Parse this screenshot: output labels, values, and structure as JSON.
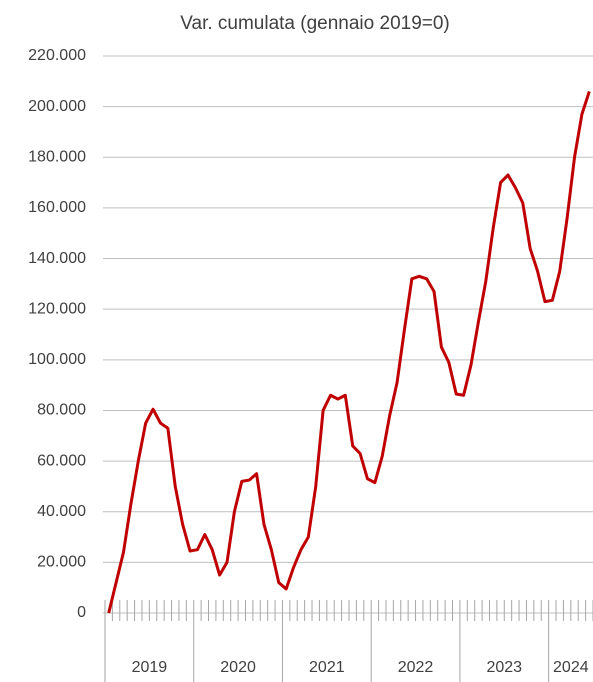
{
  "chart_data": {
    "type": "line",
    "title": "Var. cumulata (gennaio 2019=0)",
    "categories": [
      null,
      null,
      null,
      null,
      null,
      null,
      null,
      null,
      null,
      null,
      null,
      null,
      null,
      null,
      null,
      null,
      null,
      null,
      null,
      null,
      null,
      null,
      null,
      null,
      null,
      null,
      null,
      null,
      null,
      null,
      null,
      null,
      null,
      null,
      null,
      null,
      null,
      null,
      null,
      null,
      null,
      null,
      null,
      null,
      null,
      null,
      null,
      null,
      null,
      null,
      null,
      null,
      null,
      null,
      null,
      null,
      null,
      null,
      null,
      null,
      null,
      null,
      null,
      null,
      null,
      null
    ],
    "year_labels": [
      "2019",
      "2020",
      "2021",
      "2022",
      "2023",
      "2024"
    ],
    "series": [
      {
        "color": "#c00000",
        "values": [
          0,
          12000,
          24000,
          43000,
          60000,
          75000,
          80500,
          75000,
          73000,
          50000,
          35000,
          24500,
          25000,
          31000,
          25000,
          15000,
          20000,
          40000,
          52000,
          52500,
          55000,
          35000,
          25000,
          12000,
          9500,
          18000,
          25000,
          30000,
          50000,
          80000,
          86000,
          84500,
          86000,
          66000,
          63000,
          53000,
          51500,
          62000,
          78000,
          91000,
          112000,
          132000,
          133000,
          132000,
          127000,
          105000,
          99000,
          86500,
          86000,
          98000,
          115000,
          131000,
          152000,
          170000,
          173000,
          168000,
          162000,
          144000,
          135000,
          123000,
          123500,
          135000,
          156000,
          180000,
          197000,
          206000
        ]
      }
    ],
    "ylim": [
      0,
      220000
    ],
    "yticks": [
      0,
      {
        "value": 20000,
        "label": "20.000"
      },
      {
        "value": 40000,
        "label": "40.000"
      },
      {
        "value": 60000,
        "label": "60.000"
      },
      {
        "value": 80000,
        "label": "80.000"
      },
      {
        "value": 100000,
        "label": "100.000"
      },
      {
        "value": 120000,
        "label": "120.000"
      },
      {
        "value": 140000,
        "label": "140.000"
      },
      {
        "value": 160000,
        "label": "160.000"
      },
      {
        "value": 180000,
        "label": "180.000"
      },
      {
        "value": 200000,
        "label": "200.000"
      },
      {
        "value": 220000,
        "label": "220.000"
      }
    ],
    "grid": true
  }
}
